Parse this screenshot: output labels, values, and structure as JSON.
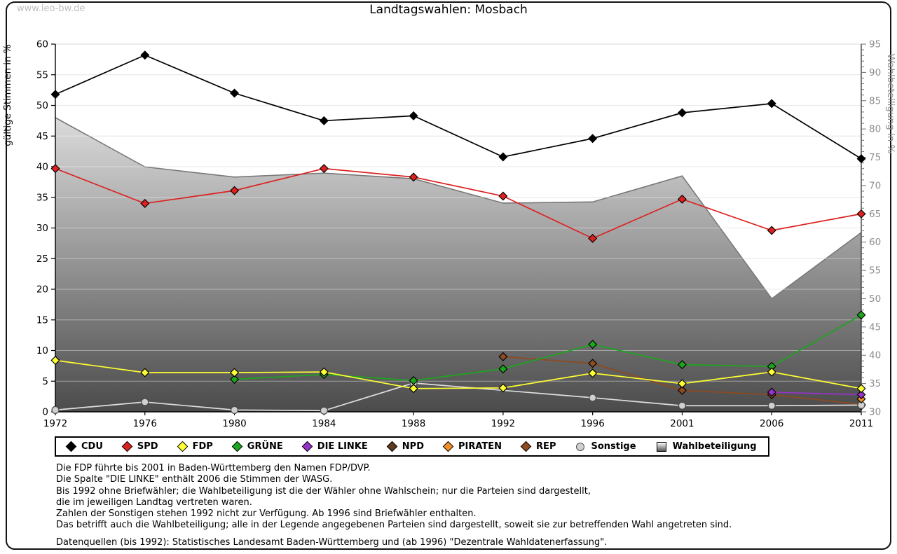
{
  "page": {
    "watermark": "www.leo-bw.de",
    "title": "Landtagswahlen: Mosbach"
  },
  "chart_data": {
    "type": "line",
    "title": "Landtagswahlen: Mosbach",
    "x_categories": [
      "1972",
      "1976",
      "1980",
      "1984",
      "1988",
      "1992",
      "1996",
      "2001",
      "2006",
      "2011"
    ],
    "left_axis": {
      "label": "gültige Stimmen in %",
      "min": 0,
      "max": 60,
      "step": 5
    },
    "right_axis": {
      "label": "Wahlbeteiligung in %",
      "min": 30,
      "max": 95,
      "step": 5
    },
    "grid": "horizontal",
    "legend_position": "bottom",
    "z_order": [
      7,
      5,
      8,
      6,
      4,
      3,
      2,
      1,
      0
    ],
    "series": [
      {
        "name": "CDU",
        "color": "#000000",
        "marker": "diamond",
        "values": [
          51.8,
          58.2,
          52.0,
          47.5,
          48.3,
          41.6,
          44.6,
          48.8,
          50.3,
          41.3
        ]
      },
      {
        "name": "SPD",
        "color": "#dc2121",
        "marker": "diamond",
        "values": [
          39.7,
          34.0,
          36.1,
          39.7,
          38.3,
          35.2,
          28.3,
          34.7,
          29.6,
          32.3
        ]
      },
      {
        "name": "FDP",
        "color": "#ffff33",
        "marker": "diamond",
        "values": [
          8.4,
          6.4,
          6.4,
          6.5,
          3.8,
          3.9,
          6.3,
          4.6,
          6.5,
          3.8
        ]
      },
      {
        "name": "GRÜNE",
        "color": "#1da51d",
        "marker": "diamond",
        "values": [
          null,
          null,
          5.3,
          6.1,
          5.1,
          7.0,
          11.0,
          7.7,
          7.4,
          15.8
        ]
      },
      {
        "name": "DIE LINKE",
        "color": "#9632c8",
        "marker": "diamond",
        "values": [
          null,
          null,
          null,
          null,
          null,
          null,
          null,
          null,
          3.2,
          2.8
        ]
      },
      {
        "name": "NPD",
        "color": "#5e3a1e",
        "marker": "diamond",
        "values": [
          null,
          null,
          null,
          null,
          null,
          null,
          null,
          null,
          null,
          1.0
        ]
      },
      {
        "name": "PIRATEN",
        "color": "#ee8f2b",
        "marker": "diamond",
        "values": [
          null,
          null,
          null,
          null,
          null,
          null,
          null,
          null,
          null,
          2.1
        ]
      },
      {
        "name": "REP",
        "color": "#8e4a20",
        "marker": "diamond",
        "values": [
          null,
          null,
          null,
          null,
          null,
          9.0,
          7.9,
          3.5,
          2.8,
          1.2
        ]
      },
      {
        "name": "Sonstige",
        "color": "#d0d0d0",
        "line_color": "#dedede",
        "marker": "circle",
        "values": [
          0.3,
          1.6,
          0.3,
          0.2,
          4.7,
          null,
          2.3,
          1.0,
          1.0,
          1.1
        ]
      }
    ],
    "area_series": {
      "name": "Wahlbeteiligung",
      "axis": "right",
      "fill_top": "#ffffff",
      "fill_bottom": "#4b4b4b",
      "stroke": "#787878",
      "values": [
        82.0,
        73.3,
        71.5,
        72.2,
        71.2,
        66.9,
        67.1,
        71.7,
        50.0,
        61.7
      ]
    }
  },
  "legend": {
    "items": [
      {
        "label": "CDU",
        "color": "#000000",
        "marker": "diamond"
      },
      {
        "label": "SPD",
        "color": "#dc2121",
        "marker": "diamond"
      },
      {
        "label": "FDP",
        "color": "#ffff33",
        "marker": "diamond"
      },
      {
        "label": "GRÜNE",
        "color": "#1da51d",
        "marker": "diamond"
      },
      {
        "label": "DIE LINKE",
        "color": "#9632c8",
        "marker": "diamond"
      },
      {
        "label": "NPD",
        "color": "#5e3a1e",
        "marker": "diamond"
      },
      {
        "label": "PIRATEN",
        "color": "#ee8f2b",
        "marker": "diamond"
      },
      {
        "label": "REP",
        "color": "#8e4a20",
        "marker": "diamond"
      },
      {
        "label": "Sonstige",
        "color": "#d0d0d0",
        "marker": "circle"
      },
      {
        "label": "Wahlbeteiligung",
        "color": "gradient-gray",
        "marker": "square"
      }
    ]
  },
  "footnotes": [
    "Die FDP führte bis 2001 in Baden-Württemberg den Namen FDP/DVP.",
    "Die Spalte \"DIE LINKE\" enthält 2006 die Stimmen der WASG.",
    "Bis 1992 ohne Briefwähler; die Wahlbeteiligung ist die der Wähler ohne Wahlschein; nur die Parteien sind dargestellt,",
    "die im jeweiligen Landtag vertreten waren.",
    "Zahlen der Sonstigen stehen 1992 nicht zur Verfügung. Ab 1996 sind Briefwähler enthalten.",
    "Das betrifft auch die Wahlbeteiligung; alle in der Legende angegebenen Parteien sind dargestellt, soweit sie zur betreffenden Wahl angetreten sind.",
    "",
    "Datenquellen (bis 1992): Statistisches Landesamt Baden-Württemberg und (ab 1996) \"Dezentrale Wahldatenerfassung\"."
  ]
}
